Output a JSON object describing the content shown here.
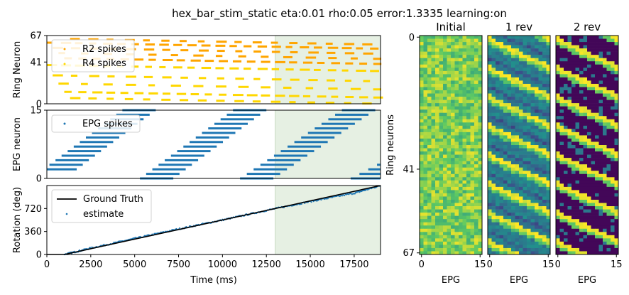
{
  "figure": {
    "suptitle": "hex_bar_stim_static eta:0.01 rho:0.05 error:1.3335 learning:on"
  },
  "colors": {
    "r2": "#ffa500",
    "r4": "#ffd700",
    "epg": "#1f77b4",
    "truth": "#000000",
    "shade": "#e6f0e3"
  },
  "chart_data": [
    {
      "type": "scatter",
      "panel": "ring",
      "ylabel": "Ring Neuron",
      "yticks": [
        "0",
        "41",
        "67"
      ],
      "ylim": [
        0,
        67
      ],
      "xlim": [
        0,
        19000
      ],
      "shaded_x": [
        13000,
        19000
      ],
      "legend": [
        "R2 spikes",
        "R4 spikes"
      ],
      "legend_position": "upper-left",
      "r2_rows": [
        60,
        55,
        50,
        45,
        64
      ],
      "r4_rows": [
        38,
        28,
        20,
        12,
        6
      ],
      "period_ms": 1600
    },
    {
      "type": "scatter",
      "panel": "epg",
      "ylabel": "EPG neuron",
      "yticks": [
        "0",
        "15"
      ],
      "ylim": [
        0,
        15
      ],
      "xlim": [
        0,
        19000
      ],
      "shaded_x": [
        13000,
        19000
      ],
      "legend": [
        "EPG spikes"
      ],
      "legend_position": "upper-left",
      "sweeps": [
        {
          "x_start": 0,
          "x_end": 4500,
          "y_start": 2,
          "y_end": 15
        },
        {
          "x_start": 5500,
          "x_end": 10800,
          "y_start": 0,
          "y_end": 15
        },
        {
          "x_start": 11200,
          "x_end": 17000,
          "y_start": 0,
          "y_end": 15
        },
        {
          "x_start": 17500,
          "x_end": 19000,
          "y_start": 0,
          "y_end": 3
        }
      ]
    },
    {
      "type": "line",
      "panel": "rotation",
      "ylabel": "Rotation (deg)",
      "xlabel": "Time (ms)",
      "yticks": [
        "0",
        "360",
        "720"
      ],
      "xticks": [
        "0",
        "2500",
        "5000",
        "7500",
        "10000",
        "12500",
        "15000",
        "17500"
      ],
      "xlim": [
        0,
        19000
      ],
      "ylim": [
        0,
        1080
      ],
      "shaded_x": [
        13000,
        19000
      ],
      "legend": [
        "Ground Truth",
        "estimate"
      ],
      "legend_position": "upper-left",
      "series": [
        {
          "name": "Ground Truth",
          "x": [
            0,
            1000,
            19000
          ],
          "y": [
            0,
            0,
            1080
          ]
        },
        {
          "name": "estimate",
          "x": [
            1000,
            2500,
            5000,
            7500,
            10000,
            12500,
            15000,
            17500,
            19000
          ],
          "y": [
            0,
            100,
            250,
            400,
            540,
            690,
            830,
            960,
            1080
          ]
        }
      ]
    },
    {
      "type": "heatmap",
      "panel": "weights",
      "titles": [
        "Initial",
        "1 rev",
        "2 rev"
      ],
      "xlabel": "EPG",
      "xticks": [
        "0",
        "15"
      ],
      "yticks": [
        "0",
        "41",
        "67"
      ],
      "ylabel": "Ring neurons",
      "rows": 68,
      "cols": 16
    }
  ]
}
